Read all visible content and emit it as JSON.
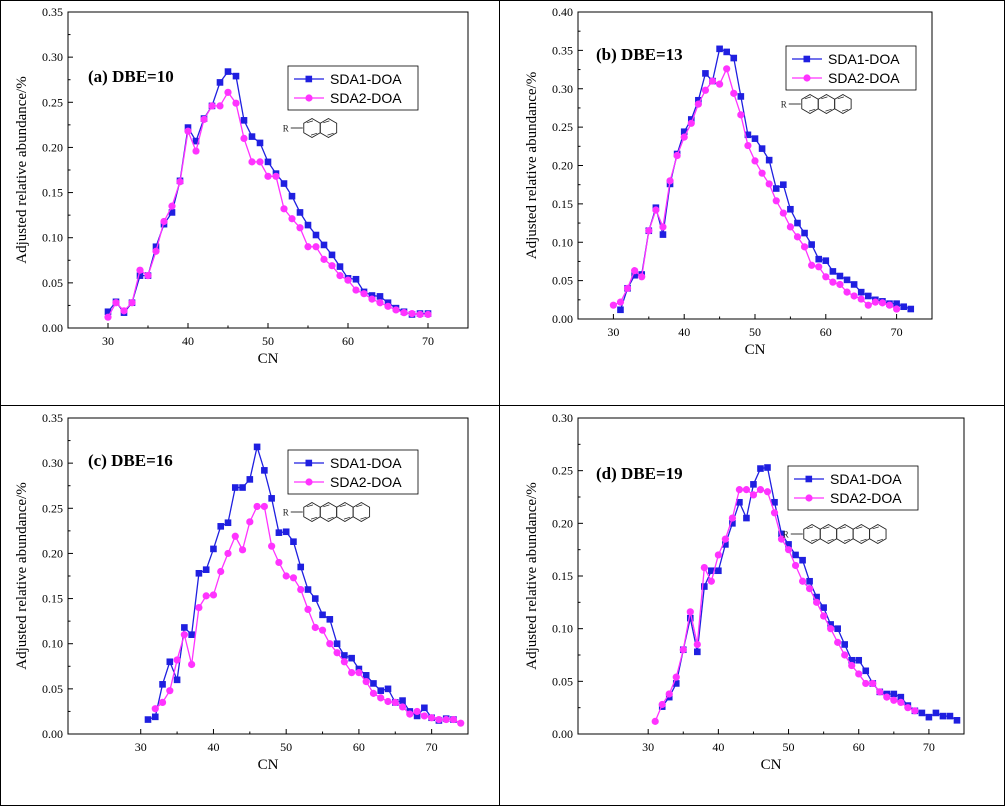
{
  "colors": {
    "SDA1-DOA": "#1f1fe0",
    "SDA2-DOA": "#ff33ff",
    "frame": "#000000"
  },
  "chart_data": [
    {
      "type": "line",
      "title": "(a) DBE=10",
      "xlabel": "CN",
      "ylabel": "Adjusted relative abundance/%",
      "xlim": [
        25,
        75
      ],
      "ylim": [
        0,
        0.35
      ],
      "xticks": [
        "30",
        "40",
        "50",
        "60",
        "70"
      ],
      "yticks": [
        "0.00",
        "0.05",
        "0.10",
        "0.15",
        "0.20",
        "0.25",
        "0.30",
        "0.35"
      ],
      "legend_position": "top-right",
      "structure": "two-ring aromatic with R substituent",
      "series": [
        {
          "name": "SDA1-DOA",
          "marker": "square",
          "x": [
            30,
            31,
            32,
            33,
            34,
            35,
            36,
            37,
            38,
            39,
            40,
            41,
            42,
            43,
            44,
            45,
            46,
            47,
            48,
            49,
            50,
            51,
            52,
            53,
            54,
            55,
            56,
            57,
            58,
            59,
            60,
            61,
            62,
            63,
            64,
            65,
            66,
            67,
            68,
            69,
            70
          ],
          "values": [
            0.018,
            0.029,
            0.017,
            0.028,
            0.058,
            0.058,
            0.09,
            0.115,
            0.128,
            0.163,
            0.222,
            0.207,
            0.232,
            0.246,
            0.272,
            0.284,
            0.279,
            0.23,
            0.212,
            0.205,
            0.184,
            0.171,
            0.16,
            0.146,
            0.128,
            0.114,
            0.103,
            0.092,
            0.081,
            0.068,
            0.055,
            0.054,
            0.04,
            0.036,
            0.035,
            0.028,
            0.022,
            0.018,
            0.015,
            0.016,
            0.016
          ]
        },
        {
          "name": "SDA2-DOA",
          "marker": "circle",
          "x": [
            30,
            31,
            32,
            33,
            34,
            35,
            36,
            37,
            38,
            39,
            40,
            41,
            42,
            43,
            44,
            45,
            46,
            47,
            48,
            49,
            50,
            51,
            52,
            53,
            54,
            55,
            56,
            57,
            58,
            59,
            60,
            61,
            62,
            63,
            64,
            65,
            66,
            67,
            68,
            69,
            70
          ],
          "values": [
            0.012,
            0.028,
            0.019,
            0.028,
            0.064,
            0.058,
            0.085,
            0.118,
            0.135,
            0.162,
            0.218,
            0.196,
            0.231,
            0.246,
            0.246,
            0.261,
            0.249,
            0.21,
            0.184,
            0.184,
            0.168,
            0.168,
            0.132,
            0.121,
            0.111,
            0.09,
            0.09,
            0.076,
            0.069,
            0.058,
            0.053,
            0.042,
            0.038,
            0.032,
            0.028,
            0.024,
            0.02,
            0.017,
            0.016,
            0.015,
            0.015
          ]
        }
      ]
    },
    {
      "type": "line",
      "title": "(b) DBE=13",
      "xlabel": "CN",
      "ylabel": "Adjusted relative abundance/%",
      "xlim": [
        25,
        75
      ],
      "ylim": [
        0,
        0.4
      ],
      "xticks": [
        "30",
        "40",
        "50",
        "60",
        "70"
      ],
      "yticks": [
        "0.00",
        "0.05",
        "0.10",
        "0.15",
        "0.20",
        "0.25",
        "0.30",
        "0.35",
        "0.40"
      ],
      "legend_position": "top-right",
      "structure": "three-ring aromatic with R substituent",
      "series": [
        {
          "name": "SDA1-DOA",
          "marker": "square",
          "x": [
            31,
            32,
            33,
            34,
            35,
            36,
            37,
            38,
            39,
            40,
            41,
            42,
            43,
            44,
            45,
            46,
            47,
            48,
            49,
            50,
            51,
            52,
            53,
            54,
            55,
            56,
            57,
            58,
            59,
            60,
            61,
            62,
            63,
            64,
            65,
            66,
            67,
            68,
            69,
            70,
            71,
            72
          ],
          "values": [
            0.012,
            0.04,
            0.057,
            0.058,
            0.115,
            0.145,
            0.11,
            0.176,
            0.215,
            0.244,
            0.26,
            0.285,
            0.32,
            0.31,
            0.352,
            0.348,
            0.34,
            0.29,
            0.24,
            0.235,
            0.222,
            0.207,
            0.17,
            0.175,
            0.143,
            0.125,
            0.112,
            0.097,
            0.078,
            0.076,
            0.062,
            0.056,
            0.051,
            0.045,
            0.035,
            0.03,
            0.025,
            0.023,
            0.02,
            0.02,
            0.016,
            0.013
          ]
        },
        {
          "name": "SDA2-DOA",
          "marker": "circle",
          "x": [
            30,
            31,
            32,
            33,
            34,
            35,
            36,
            37,
            38,
            39,
            40,
            41,
            42,
            43,
            44,
            45,
            46,
            47,
            48,
            49,
            50,
            51,
            52,
            53,
            54,
            55,
            56,
            57,
            58,
            59,
            60,
            61,
            62,
            63,
            64,
            65,
            66,
            67,
            68,
            69,
            70
          ],
          "values": [
            0.018,
            0.022,
            0.04,
            0.063,
            0.055,
            0.115,
            0.142,
            0.12,
            0.18,
            0.213,
            0.237,
            0.255,
            0.28,
            0.298,
            0.31,
            0.306,
            0.326,
            0.294,
            0.266,
            0.226,
            0.206,
            0.19,
            0.176,
            0.154,
            0.138,
            0.12,
            0.107,
            0.094,
            0.07,
            0.068,
            0.055,
            0.048,
            0.045,
            0.035,
            0.03,
            0.026,
            0.018,
            0.022,
            0.021,
            0.018,
            0.013
          ]
        }
      ]
    },
    {
      "type": "line",
      "title": "(c) DBE=16",
      "xlabel": "CN",
      "ylabel": "Adjusted relative abundance/%",
      "xlim": [
        20,
        75
      ],
      "ylim": [
        0,
        0.35
      ],
      "xticks": [
        "30",
        "40",
        "50",
        "60",
        "70"
      ],
      "yticks": [
        "0.00",
        "0.05",
        "0.10",
        "0.15",
        "0.20",
        "0.25",
        "0.30",
        "0.35"
      ],
      "legend_position": "top-right",
      "structure": "four-ring aromatic with R substituent",
      "series": [
        {
          "name": "SDA1-DOA",
          "marker": "square",
          "x": [
            31,
            32,
            33,
            34,
            35,
            36,
            37,
            38,
            39,
            40,
            41,
            42,
            43,
            44,
            45,
            46,
            47,
            48,
            49,
            50,
            51,
            52,
            53,
            54,
            55,
            56,
            57,
            58,
            59,
            60,
            61,
            62,
            63,
            64,
            65,
            66,
            67,
            68,
            69,
            70,
            71,
            72,
            73
          ],
          "values": [
            0.016,
            0.019,
            0.055,
            0.08,
            0.06,
            0.118,
            0.11,
            0.178,
            0.182,
            0.205,
            0.23,
            0.234,
            0.273,
            0.273,
            0.282,
            0.318,
            0.292,
            0.261,
            0.223,
            0.224,
            0.213,
            0.185,
            0.16,
            0.15,
            0.132,
            0.127,
            0.1,
            0.087,
            0.084,
            0.072,
            0.065,
            0.056,
            0.048,
            0.05,
            0.035,
            0.037,
            0.025,
            0.02,
            0.029,
            0.018,
            0.015,
            0.017,
            0.016
          ]
        },
        {
          "name": "SDA2-DOA",
          "marker": "circle",
          "x": [
            32,
            33,
            34,
            35,
            36,
            37,
            38,
            39,
            40,
            41,
            42,
            43,
            44,
            45,
            46,
            47,
            48,
            49,
            50,
            51,
            52,
            53,
            54,
            55,
            56,
            57,
            58,
            59,
            60,
            61,
            62,
            63,
            64,
            65,
            66,
            67,
            68,
            69,
            70,
            71,
            72,
            73,
            74
          ],
          "values": [
            0.028,
            0.035,
            0.048,
            0.082,
            0.11,
            0.077,
            0.14,
            0.153,
            0.154,
            0.18,
            0.2,
            0.219,
            0.204,
            0.235,
            0.252,
            0.252,
            0.208,
            0.19,
            0.175,
            0.173,
            0.16,
            0.138,
            0.118,
            0.115,
            0.1,
            0.09,
            0.08,
            0.068,
            0.068,
            0.058,
            0.045,
            0.04,
            0.036,
            0.035,
            0.03,
            0.022,
            0.025,
            0.02,
            0.018,
            0.016,
            0.016,
            0.016,
            0.012
          ]
        }
      ]
    },
    {
      "type": "line",
      "title": "(d) DBE=19",
      "xlabel": "CN",
      "ylabel": "Adjusted relative abundance/%",
      "xlim": [
        20,
        75
      ],
      "ylim": [
        0,
        0.3
      ],
      "xticks": [
        "30",
        "40",
        "50",
        "60",
        "70"
      ],
      "yticks": [
        "0.00",
        "0.05",
        "0.10",
        "0.15",
        "0.20",
        "0.25",
        "0.30"
      ],
      "legend_position": "top-right",
      "structure": "five-ring aromatic with R substituent",
      "series": [
        {
          "name": "SDA1-DOA",
          "marker": "square",
          "x": [
            32,
            33,
            34,
            35,
            36,
            37,
            38,
            39,
            40,
            41,
            42,
            43,
            44,
            45,
            46,
            47,
            48,
            49,
            50,
            51,
            52,
            53,
            54,
            55,
            56,
            57,
            58,
            59,
            60,
            61,
            62,
            63,
            64,
            65,
            66,
            67,
            68,
            69,
            70,
            71,
            72,
            73,
            74
          ],
          "values": [
            0.026,
            0.035,
            0.048,
            0.08,
            0.11,
            0.078,
            0.14,
            0.155,
            0.155,
            0.18,
            0.2,
            0.22,
            0.205,
            0.237,
            0.252,
            0.253,
            0.22,
            0.19,
            0.18,
            0.17,
            0.165,
            0.145,
            0.13,
            0.12,
            0.104,
            0.1,
            0.085,
            0.07,
            0.07,
            0.06,
            0.048,
            0.04,
            0.038,
            0.038,
            0.035,
            0.027,
            0.022,
            0.02,
            0.016,
            0.02,
            0.017,
            0.017,
            0.013
          ]
        },
        {
          "name": "SDA2-DOA",
          "marker": "circle",
          "x": [
            31,
            32,
            33,
            34,
            35,
            36,
            37,
            38,
            39,
            40,
            41,
            42,
            43,
            44,
            45,
            46,
            47,
            48,
            49,
            50,
            51,
            52,
            53,
            54,
            55,
            56,
            57,
            58,
            59,
            60,
            61,
            62,
            63,
            64,
            65,
            66,
            67,
            68
          ],
          "values": [
            0.012,
            0.028,
            0.038,
            0.054,
            0.08,
            0.116,
            0.085,
            0.158,
            0.145,
            0.17,
            0.185,
            0.205,
            0.232,
            0.232,
            0.227,
            0.232,
            0.23,
            0.21,
            0.185,
            0.175,
            0.16,
            0.145,
            0.138,
            0.125,
            0.112,
            0.1,
            0.087,
            0.075,
            0.065,
            0.057,
            0.048,
            0.048,
            0.04,
            0.035,
            0.032,
            0.03,
            0.025,
            0.022
          ]
        }
      ]
    }
  ]
}
